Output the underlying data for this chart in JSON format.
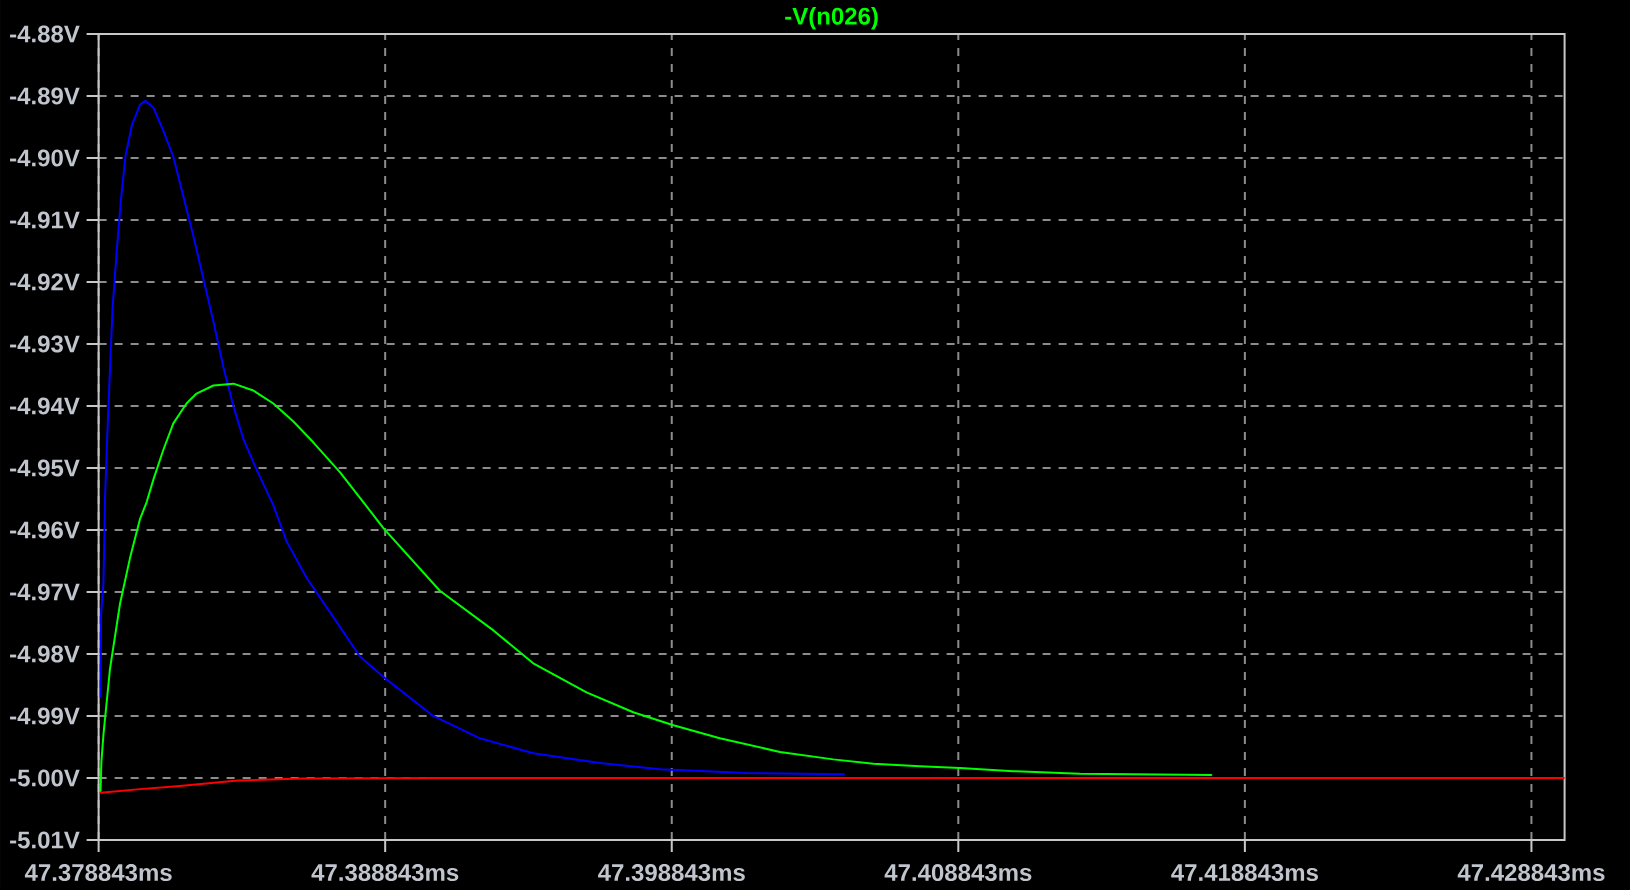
{
  "chart_data": {
    "type": "line",
    "xlim": [
      47.378843,
      47.43
    ],
    "ylim": [
      -5.01,
      -4.88
    ],
    "xticks": [
      {
        "value": 47.378843,
        "label": "47.378843ms"
      },
      {
        "value": 47.388843,
        "label": "47.388843ms"
      },
      {
        "value": 47.398843,
        "label": "47.398843ms"
      },
      {
        "value": 47.408843,
        "label": "47.408843ms"
      },
      {
        "value": 47.418843,
        "label": "47.418843ms"
      },
      {
        "value": 47.428843,
        "label": "47.428843ms"
      }
    ],
    "yticks": [
      {
        "value": -5.01,
        "label": "-5.01V"
      },
      {
        "value": -5.0,
        "label": "-5.00V"
      },
      {
        "value": -4.99,
        "label": "-4.99V"
      },
      {
        "value": -4.98,
        "label": "-4.98V"
      },
      {
        "value": -4.97,
        "label": "-4.97V"
      },
      {
        "value": -4.96,
        "label": "-4.96V"
      },
      {
        "value": -4.95,
        "label": "-4.95V"
      },
      {
        "value": -4.94,
        "label": "-4.94V"
      },
      {
        "value": -4.93,
        "label": "-4.93V"
      },
      {
        "value": -4.92,
        "label": "-4.92V"
      },
      {
        "value": -4.91,
        "label": "-4.91V"
      },
      {
        "value": -4.9,
        "label": "-4.90V"
      },
      {
        "value": -4.89,
        "label": "-4.89V"
      },
      {
        "value": -4.88,
        "label": "-4.88V"
      }
    ],
    "grid": true,
    "series": [
      {
        "color": "#0000ff",
        "x": [
          47.37891,
          47.37893,
          47.37901,
          47.37907,
          47.37917,
          47.37933,
          47.37949,
          47.37963,
          47.37978,
          47.38001,
          47.38029,
          47.38048,
          47.38076,
          47.3811,
          47.38145,
          47.3818,
          47.38215,
          47.3825,
          47.38285,
          47.3832,
          47.38355,
          47.3839,
          47.38436,
          47.38494,
          47.3854,
          47.3861,
          47.38704,
          47.38796,
          47.38889,
          47.39052,
          47.39215,
          47.39401,
          47.39634,
          47.39843,
          47.40145,
          47.40485
        ],
        "values": [
          -4.9868,
          -4.9735,
          -4.9687,
          -4.9544,
          -4.9417,
          -4.9242,
          -4.9141,
          -4.9064,
          -4.8997,
          -4.8946,
          -4.8914,
          -4.8908,
          -4.8919,
          -4.8956,
          -4.8998,
          -4.9062,
          -4.9126,
          -4.9195,
          -4.9264,
          -4.9338,
          -4.9401,
          -4.9454,
          -4.9503,
          -4.956,
          -4.9618,
          -4.9677,
          -4.9741,
          -4.9804,
          -4.9841,
          -4.99,
          -4.9936,
          -4.996,
          -4.9976,
          -4.9986,
          -4.9992,
          -4.9994
        ]
      },
      {
        "name": "-V(n026)",
        "color": "#00ff00",
        "x": [
          47.37891,
          47.37894,
          47.37901,
          47.37924,
          47.37959,
          47.37994,
          47.38029,
          47.38052,
          47.38076,
          47.3811,
          47.38145,
          47.38191,
          47.38226,
          47.38285,
          47.38355,
          47.38424,
          47.38494,
          47.38564,
          47.38634,
          47.38727,
          47.38808,
          47.38878,
          47.39075,
          47.39262,
          47.39401,
          47.39587,
          47.3975,
          47.3989,
          47.40052,
          47.40262,
          47.40448,
          47.40588,
          47.4075,
          47.4089,
          47.41076,
          47.41308,
          47.41767
        ],
        "values": [
          -5.0021,
          -4.9974,
          -4.9931,
          -4.9824,
          -4.9719,
          -4.9645,
          -4.9582,
          -4.9555,
          -4.9518,
          -4.9471,
          -4.9428,
          -4.9396,
          -4.938,
          -4.9367,
          -4.9364,
          -4.9375,
          -4.9396,
          -4.9425,
          -4.9459,
          -4.9507,
          -4.9555,
          -4.9597,
          -4.9698,
          -4.9762,
          -4.9815,
          -4.9862,
          -4.9894,
          -4.9915,
          -4.9936,
          -4.9958,
          -4.997,
          -4.9977,
          -4.9981,
          -4.9984,
          -4.9989,
          -4.9993,
          -4.9995
        ]
      },
      {
        "color": "#ff0000",
        "x": [
          47.37891,
          47.38029,
          47.38168,
          47.38369,
          47.38594,
          47.39075,
          47.43
        ],
        "values": [
          -5.0024,
          -5.0018,
          -5.0013,
          -5.0004,
          -5.0001,
          -5.0,
          -5.0
        ]
      }
    ]
  }
}
